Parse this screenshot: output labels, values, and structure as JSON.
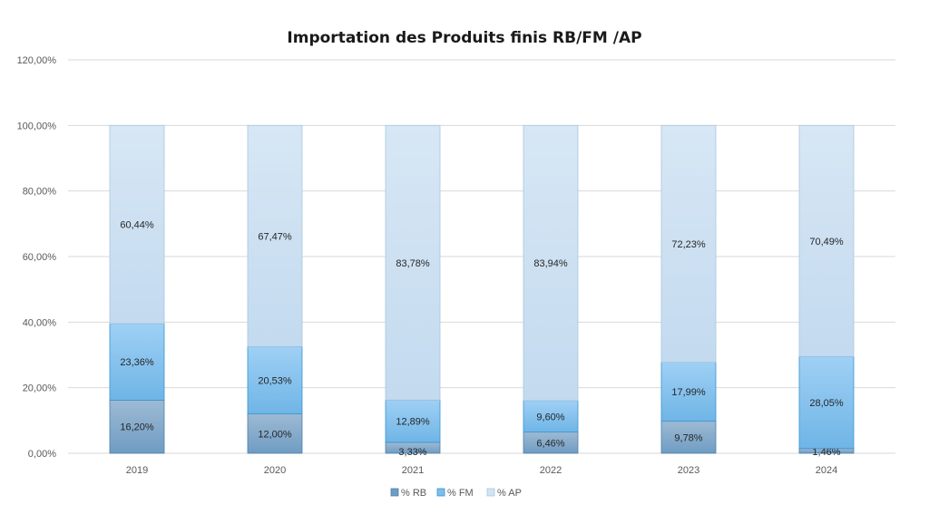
{
  "chart_data": {
    "type": "bar",
    "stacked": true,
    "title": "Importation des Produits finis RB/FM /AP",
    "xlabel": "",
    "ylabel": "",
    "categories": [
      "2019",
      "2020",
      "2021",
      "2022",
      "2023",
      "2024"
    ],
    "series": [
      {
        "name": "% RB",
        "values": [
          16.2,
          12.0,
          3.33,
          6.46,
          9.78,
          1.46
        ],
        "labels": [
          "16,20%",
          "12,00%",
          "3,33%",
          "6,46%",
          "9,78%",
          "1,46%"
        ],
        "color": "#7FA7C9"
      },
      {
        "name": "% FM",
        "values": [
          23.36,
          20.53,
          12.89,
          9.6,
          17.99,
          28.05
        ],
        "labels": [
          "23,36%",
          "20,53%",
          "12,89%",
          "9,60%",
          "17,99%",
          "28,05%"
        ],
        "color": "#86C1EC"
      },
      {
        "name": "% AP",
        "values": [
          60.44,
          67.47,
          83.78,
          83.94,
          72.23,
          70.49
        ],
        "labels": [
          "60,44%",
          "67,47%",
          "83,78%",
          "83,94%",
          "72,23%",
          "70,49%"
        ],
        "color": "#CCE0F2"
      }
    ],
    "ylim": [
      0,
      120
    ],
    "yticks": [
      0,
      20,
      40,
      60,
      80,
      100,
      120
    ],
    "ytick_labels": [
      "0,00%",
      "20,00%",
      "40,00%",
      "60,00%",
      "80,00%",
      "100,00%",
      "120,00%"
    ],
    "grid": true,
    "legend_position": "bottom"
  }
}
